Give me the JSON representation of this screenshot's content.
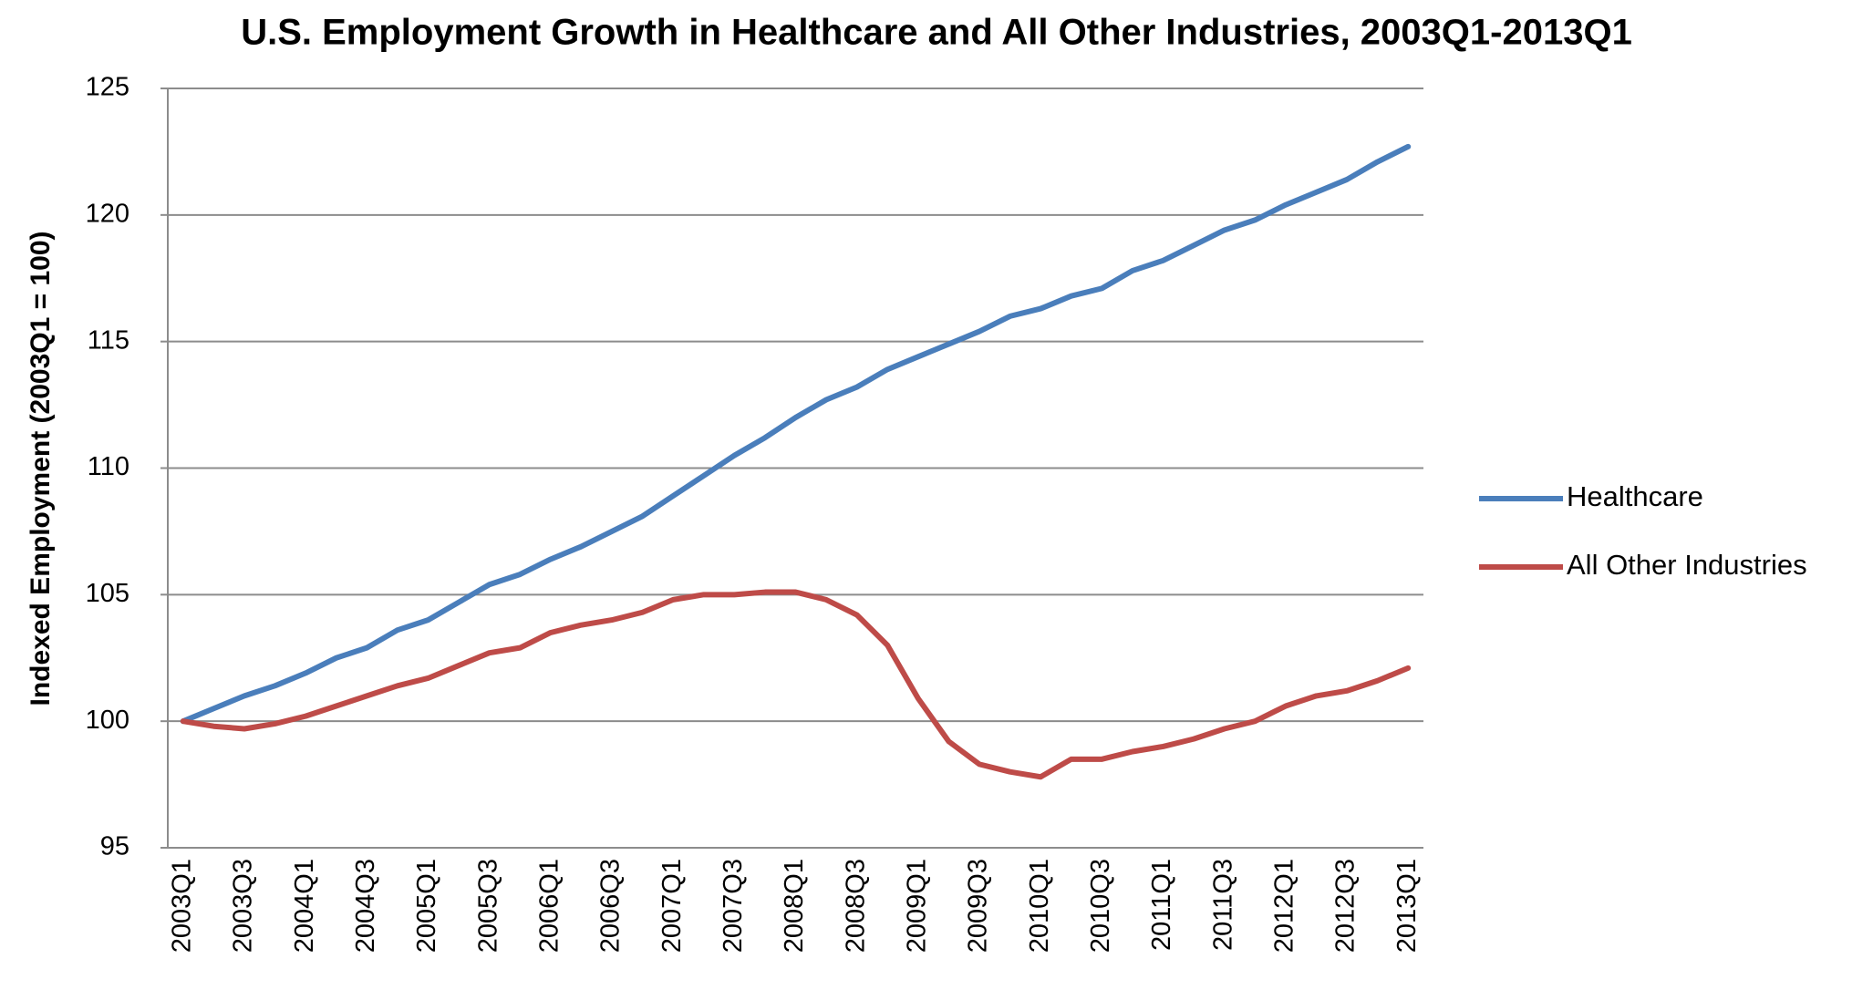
{
  "chart_data": {
    "type": "line",
    "title": "U.S. Employment Growth in Healthcare and All Other Industries, 2003Q1-2013Q1",
    "y_label": "Indexed Employment (2003Q1 = 100)",
    "categories": [
      "2003Q1",
      null,
      "2003Q3",
      null,
      "2004Q1",
      null,
      "2004Q3",
      null,
      "2005Q1",
      null,
      "2005Q3",
      null,
      "2006Q1",
      null,
      "2006Q3",
      null,
      "2007Q1",
      null,
      "2007Q3",
      null,
      "2008Q1",
      null,
      "2008Q3",
      null,
      "2009Q1",
      null,
      "2009Q3",
      null,
      "2010Q1",
      null,
      "2010Q3",
      null,
      "2011Q1",
      null,
      "2011Q3",
      null,
      "2012Q1",
      null,
      "2012Q3",
      null,
      "2013Q1"
    ],
    "series": [
      {
        "name": "Healthcare",
        "color": "#4a7ebb",
        "values": [
          100.0,
          100.5,
          101.0,
          101.4,
          101.9,
          102.5,
          102.9,
          103.6,
          104.0,
          104.7,
          105.4,
          105.8,
          106.4,
          106.9,
          107.5,
          108.1,
          108.9,
          109.7,
          110.5,
          111.2,
          112.0,
          112.7,
          113.2,
          113.9,
          114.4,
          114.9,
          115.4,
          116.0,
          116.3,
          116.8,
          117.1,
          117.8,
          118.2,
          118.8,
          119.4,
          119.8,
          120.4,
          120.9,
          121.4,
          122.1,
          122.7
        ]
      },
      {
        "name": "All Other Industries",
        "color": "#be4b48",
        "values": [
          100.0,
          99.8,
          99.7,
          99.9,
          100.2,
          100.6,
          101.0,
          101.4,
          101.7,
          102.2,
          102.7,
          102.9,
          103.5,
          103.8,
          104.0,
          104.3,
          104.8,
          105.0,
          105.0,
          105.1,
          105.1,
          104.8,
          104.2,
          103.0,
          100.9,
          99.2,
          98.3,
          98.0,
          97.8,
          98.5,
          98.5,
          98.8,
          99.0,
          99.3,
          99.7,
          100.0,
          100.6,
          101.0,
          101.2,
          101.6,
          102.1
        ]
      }
    ],
    "ylim": [
      95,
      125
    ],
    "yticks": [
      95,
      100,
      105,
      110,
      115,
      120,
      125
    ],
    "grid": true,
    "legend": "right"
  }
}
